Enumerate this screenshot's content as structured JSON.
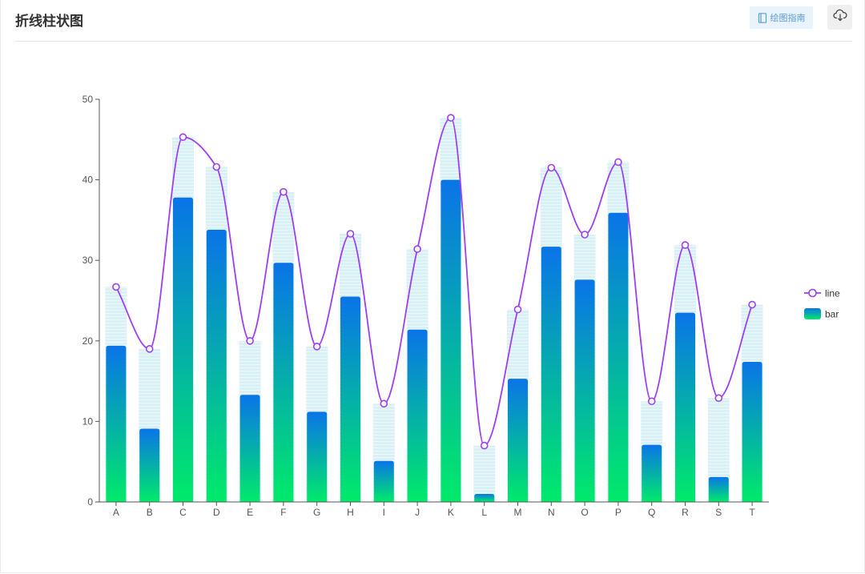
{
  "header": {
    "title": "折线柱状图",
    "guide_label": "绘图指南"
  },
  "icons": {
    "guide": "book-icon",
    "download": "cloud-download-icon"
  },
  "colors": {
    "line": "#9d3ef5",
    "bar_top": "#0a74e8",
    "bar_bottom": "#00ea6a",
    "background_bar": "#d9f1f6"
  },
  "chart_data": {
    "type": "bar",
    "categories": [
      "A",
      "B",
      "C",
      "D",
      "E",
      "F",
      "G",
      "H",
      "I",
      "J",
      "K",
      "L",
      "M",
      "N",
      "O",
      "P",
      "Q",
      "R",
      "S",
      "T"
    ],
    "series": [
      {
        "name": "line",
        "type": "line",
        "smooth": true,
        "values": [
          26.7,
          19.0,
          45.3,
          41.6,
          20.0,
          38.5,
          19.3,
          33.3,
          12.2,
          31.4,
          47.7,
          7.0,
          23.9,
          41.5,
          33.2,
          42.2,
          12.5,
          31.9,
          12.9,
          24.5
        ]
      },
      {
        "name": "bar",
        "type": "bar",
        "values": [
          19.4,
          9.1,
          37.8,
          33.8,
          13.3,
          29.7,
          11.2,
          25.5,
          5.1,
          21.4,
          40.0,
          1.0,
          15.3,
          31.7,
          27.6,
          35.9,
          7.1,
          23.5,
          3.1,
          17.4
        ]
      }
    ],
    "ylim": [
      0,
      50
    ],
    "yticks": [
      0,
      10,
      20,
      30,
      40,
      50
    ],
    "legend_position": "right",
    "grid": false
  }
}
